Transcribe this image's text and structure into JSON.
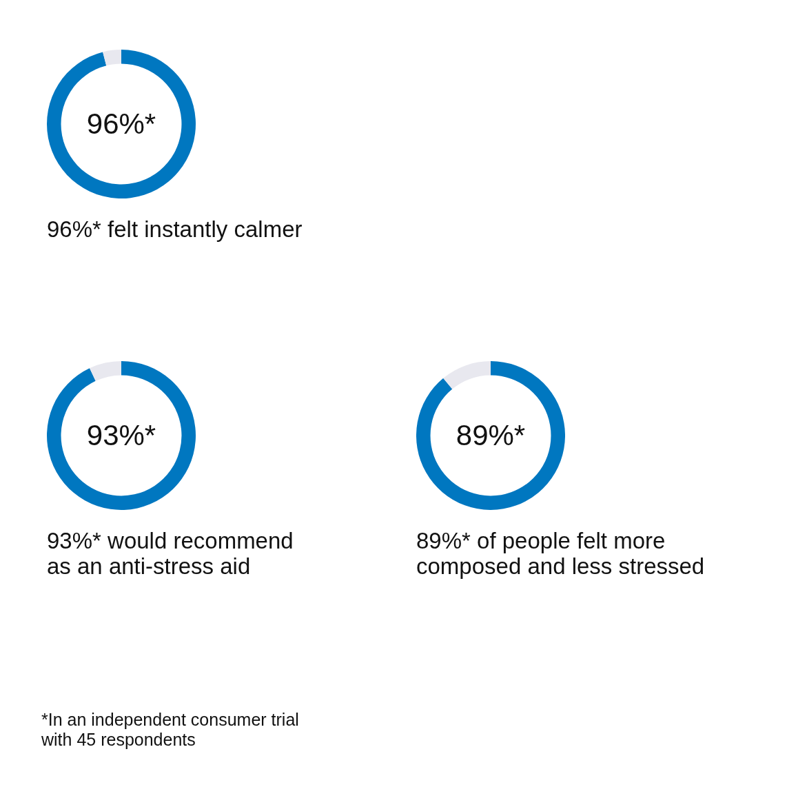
{
  "chart_data": [
    {
      "type": "donut",
      "categories": [
        null,
        null
      ],
      "values": [
        96,
        4
      ],
      "colors": [
        "#0077c0",
        "#e8e8ef"
      ],
      "annotations": [
        "96%*",
        "96%* felt instantly calmer"
      ]
    },
    {
      "type": "donut",
      "categories": [
        null,
        null
      ],
      "values": [
        93,
        7
      ],
      "colors": [
        "#0077c0",
        "#e8e8ef"
      ],
      "annotations": [
        "93%*",
        "93%* would recommend\nas an anti-stress aid"
      ]
    },
    {
      "type": "donut",
      "categories": [
        null,
        null
      ],
      "values": [
        89,
        11
      ],
      "colors": [
        "#0077c0",
        "#e8e8ef"
      ],
      "annotations": [
        "89%*",
        "89%* of people felt more\ncomposed and less stressed",
        "*In an independent consumer trial\nwith 45 respondents"
      ]
    }
  ]
}
